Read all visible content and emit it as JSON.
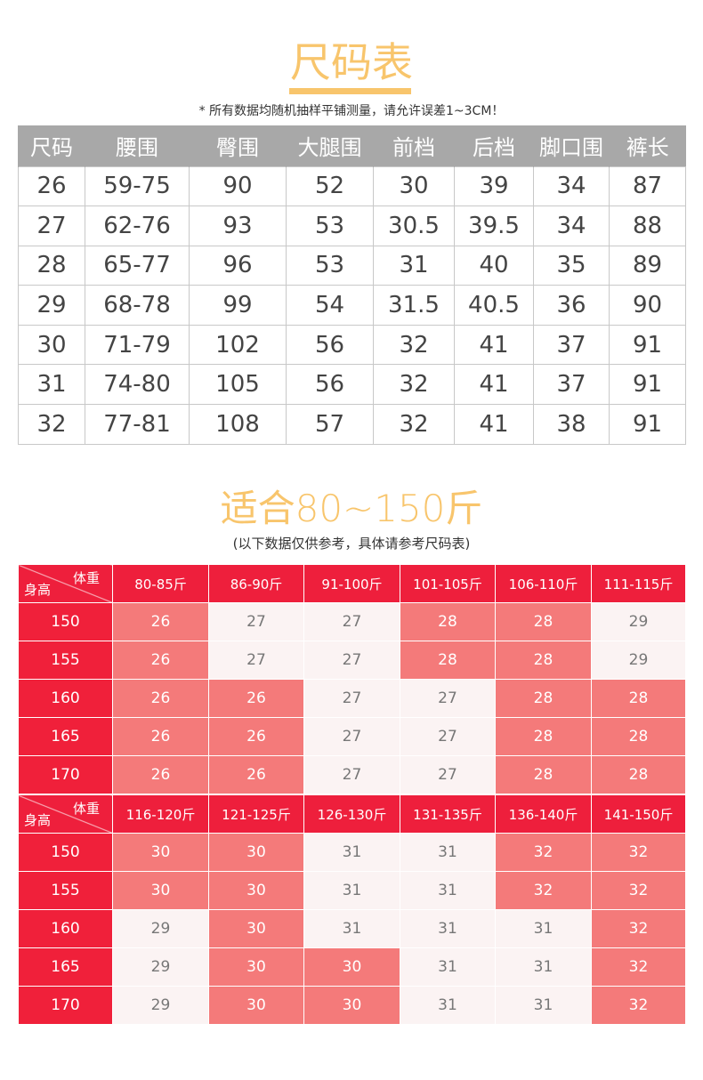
{
  "size_chart": {
    "title": "尺码表",
    "note": "* 所有数据均随机抽样平铺测量，请允许误差1~3CM！",
    "headers": [
      "尺码",
      "腰围",
      "臀围",
      "大腿围",
      "前档",
      "后档",
      "脚口围",
      "裤长"
    ],
    "rows": [
      [
        "26",
        "59-75",
        "90",
        "52",
        "30",
        "39",
        "34",
        "87"
      ],
      [
        "27",
        "62-76",
        "93",
        "53",
        "30.5",
        "39.5",
        "34",
        "88"
      ],
      [
        "28",
        "65-77",
        "96",
        "53",
        "31",
        "40",
        "35",
        "89"
      ],
      [
        "29",
        "68-78",
        "99",
        "54",
        "31.5",
        "40.5",
        "36",
        "90"
      ],
      [
        "30",
        "71-79",
        "102",
        "56",
        "32",
        "41",
        "37",
        "91"
      ],
      [
        "31",
        "74-80",
        "105",
        "56",
        "32",
        "41",
        "37",
        "91"
      ],
      [
        "32",
        "77-81",
        "108",
        "57",
        "32",
        "41",
        "38",
        "91"
      ]
    ]
  },
  "fit": {
    "title": "适合80~150斤",
    "note": "(以下数据仅供参考，具体请参考尺码表)",
    "corner_weight": "体重",
    "corner_height": "身高",
    "colors": {
      "header": "#ee1f3c",
      "highlight": "#f47a7a",
      "light": "#fbf3f3"
    },
    "tables": [
      {
        "weights": [
          "80-85斤",
          "86-90斤",
          "91-100斤",
          "101-105斤",
          "106-110斤",
          "111-115斤"
        ],
        "rows": [
          {
            "height": "150",
            "cells": [
              {
                "v": "26",
                "highlight": true
              },
              {
                "v": "27",
                "highlight": false
              },
              {
                "v": "27",
                "highlight": false
              },
              {
                "v": "28",
                "highlight": true
              },
              {
                "v": "28",
                "highlight": true
              },
              {
                "v": "29",
                "highlight": false
              }
            ]
          },
          {
            "height": "155",
            "cells": [
              {
                "v": "26",
                "highlight": true
              },
              {
                "v": "27",
                "highlight": false
              },
              {
                "v": "27",
                "highlight": false
              },
              {
                "v": "28",
                "highlight": true
              },
              {
                "v": "28",
                "highlight": true
              },
              {
                "v": "29",
                "highlight": false
              }
            ]
          },
          {
            "height": "160",
            "cells": [
              {
                "v": "26",
                "highlight": true
              },
              {
                "v": "26",
                "highlight": true
              },
              {
                "v": "27",
                "highlight": false
              },
              {
                "v": "27",
                "highlight": false
              },
              {
                "v": "28",
                "highlight": true
              },
              {
                "v": "28",
                "highlight": true
              }
            ]
          },
          {
            "height": "165",
            "cells": [
              {
                "v": "26",
                "highlight": true
              },
              {
                "v": "26",
                "highlight": true
              },
              {
                "v": "27",
                "highlight": false
              },
              {
                "v": "27",
                "highlight": false
              },
              {
                "v": "28",
                "highlight": true
              },
              {
                "v": "28",
                "highlight": true
              }
            ]
          },
          {
            "height": "170",
            "cells": [
              {
                "v": "26",
                "highlight": true
              },
              {
                "v": "26",
                "highlight": true
              },
              {
                "v": "27",
                "highlight": false
              },
              {
                "v": "27",
                "highlight": false
              },
              {
                "v": "28",
                "highlight": true
              },
              {
                "v": "28",
                "highlight": true
              }
            ]
          }
        ]
      },
      {
        "weights": [
          "116-120斤",
          "121-125斤",
          "126-130斤",
          "131-135斤",
          "136-140斤",
          "141-150斤"
        ],
        "rows": [
          {
            "height": "150",
            "cells": [
              {
                "v": "30",
                "highlight": true
              },
              {
                "v": "30",
                "highlight": true
              },
              {
                "v": "31",
                "highlight": false
              },
              {
                "v": "31",
                "highlight": false
              },
              {
                "v": "32",
                "highlight": true
              },
              {
                "v": "32",
                "highlight": true
              }
            ]
          },
          {
            "height": "155",
            "cells": [
              {
                "v": "30",
                "highlight": true
              },
              {
                "v": "30",
                "highlight": true
              },
              {
                "v": "31",
                "highlight": false
              },
              {
                "v": "31",
                "highlight": false
              },
              {
                "v": "32",
                "highlight": true
              },
              {
                "v": "32",
                "highlight": true
              }
            ]
          },
          {
            "height": "160",
            "cells": [
              {
                "v": "29",
                "highlight": false
              },
              {
                "v": "30",
                "highlight": true
              },
              {
                "v": "31",
                "highlight": false
              },
              {
                "v": "31",
                "highlight": false
              },
              {
                "v": "31",
                "highlight": false
              },
              {
                "v": "32",
                "highlight": true
              }
            ]
          },
          {
            "height": "165",
            "cells": [
              {
                "v": "29",
                "highlight": false
              },
              {
                "v": "30",
                "highlight": true
              },
              {
                "v": "30",
                "highlight": true
              },
              {
                "v": "31",
                "highlight": false
              },
              {
                "v": "31",
                "highlight": false
              },
              {
                "v": "32",
                "highlight": true
              }
            ]
          },
          {
            "height": "170",
            "cells": [
              {
                "v": "29",
                "highlight": false
              },
              {
                "v": "30",
                "highlight": true
              },
              {
                "v": "30",
                "highlight": true
              },
              {
                "v": "31",
                "highlight": false
              },
              {
                "v": "31",
                "highlight": false
              },
              {
                "v": "32",
                "highlight": true
              }
            ]
          }
        ]
      }
    ]
  }
}
